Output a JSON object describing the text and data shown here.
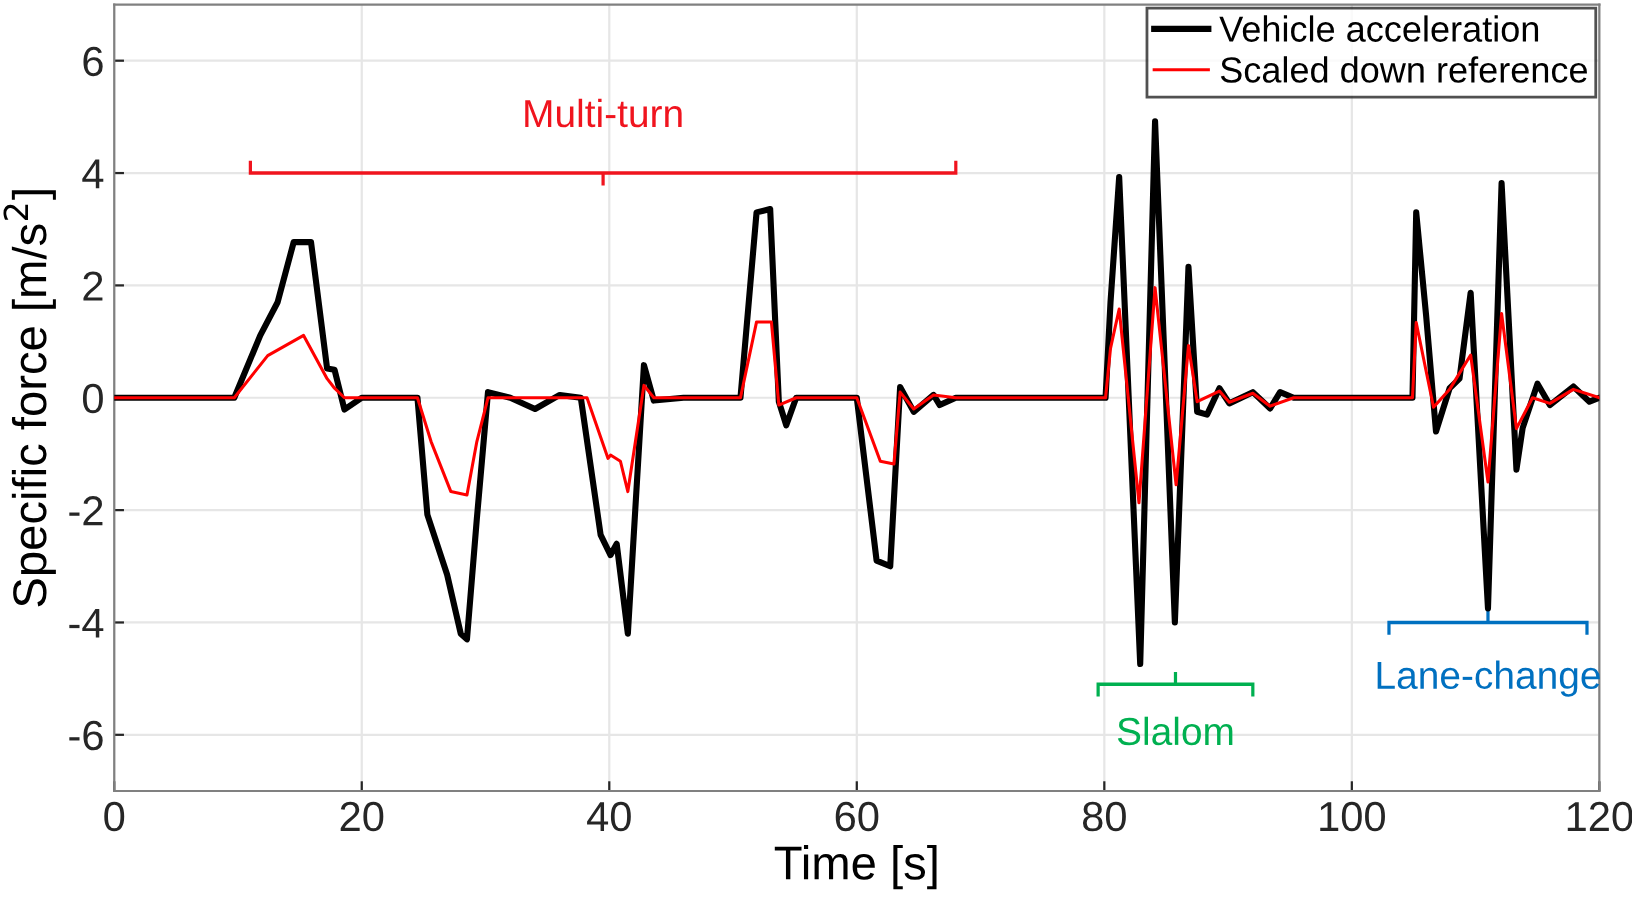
{
  "chart_data": {
    "type": "line",
    "xlabel": "Time [s]",
    "ylabel": "Specific force [m/s$^{2}$]",
    "xlim": [
      0,
      120
    ],
    "ylim": [
      -7,
      7
    ],
    "xticks": [
      0,
      20,
      40,
      60,
      80,
      100,
      120
    ],
    "yticks": [
      -6,
      -4,
      -2,
      0,
      2,
      4,
      6
    ],
    "grid": true,
    "legend": "top right",
    "line_style": "solid",
    "annotations": [
      "Multi-turn",
      "Slalom",
      "Lane-change"
    ],
    "series": [
      {
        "name": "Vehicle acceleration",
        "color": "#000000",
        "x": [
          0,
          9.7,
          11.8,
          13.2,
          14.5,
          15.9,
          17.2,
          17.8,
          18.6,
          20,
          24.5,
          25.3,
          26.9,
          28.0,
          28.5,
          29.3,
          30.2,
          32,
          34,
          36,
          37.7,
          39.3,
          40.1,
          40.6,
          41.5,
          42.8,
          43.6,
          46,
          50.6,
          51.9,
          53.0,
          53.7,
          54.3,
          55.1,
          60.0,
          61.6,
          62.7,
          63.5,
          64.6,
          66.2,
          66.7,
          68,
          80.1,
          80.5,
          81.2,
          82.9,
          84.1,
          85.7,
          86.8,
          87.5,
          88.3,
          89.3,
          90.1,
          92,
          93.4,
          94.2,
          95.3,
          104.9,
          105.2,
          106.0,
          106.8,
          107.9,
          108.7,
          109.6,
          111.0,
          112.1,
          113.3,
          113.8,
          115.0,
          116.0,
          117.9,
          119.2,
          120
        ],
        "values": [
          0,
          0,
          1.11,
          1.7,
          2.77,
          2.77,
          0.52,
          0.5,
          -0.21,
          0,
          0,
          -2.08,
          -3.15,
          -4.2,
          -4.3,
          -2.15,
          0.1,
          0,
          -0.2,
          0.05,
          0,
          -2.44,
          -2.8,
          -2.6,
          -4.2,
          0.58,
          -0.05,
          0,
          0,
          3.3,
          3.36,
          -0.07,
          -0.49,
          0,
          0,
          -2.9,
          -3.0,
          0.19,
          -0.25,
          0.05,
          -0.13,
          0,
          0,
          1.7,
          3.93,
          -4.74,
          4.92,
          -4.0,
          2.33,
          -0.25,
          -0.3,
          0.17,
          -0.1,
          0.1,
          -0.19,
          0.1,
          0,
          0,
          3.3,
          1.47,
          -0.6,
          0.17,
          0.34,
          1.87,
          -3.75,
          3.82,
          -1.28,
          -0.54,
          0.25,
          -0.13,
          0.2,
          -0.07,
          0
        ]
      },
      {
        "name": "Scaled down reference",
        "color": "#ff0000",
        "x": [
          0,
          9.7,
          12.4,
          15.3,
          17.2,
          17.8,
          18.6,
          24.5,
          25.6,
          27.2,
          28.5,
          29.3,
          30.2,
          38.2,
          39.9,
          40.1,
          40.9,
          41.5,
          42.8,
          43.6,
          50.6,
          51.9,
          53.1,
          53.7,
          55.1,
          60.0,
          61.9,
          63.0,
          63.5,
          64.6,
          66.2,
          68,
          80.1,
          80.5,
          81.2,
          82.8,
          84.1,
          85.8,
          86.8,
          87.5,
          89.3,
          90.1,
          92,
          93.4,
          95.3,
          104.9,
          105.2,
          106.6,
          107.9,
          109.6,
          111.0,
          112.1,
          113.3,
          114.6,
          116.0,
          117.9,
          120
        ],
        "values": [
          0,
          0,
          0.75,
          1.11,
          0.34,
          0.17,
          0,
          0,
          -0.78,
          -1.67,
          -1.73,
          -0.78,
          0,
          0,
          -1.08,
          -1.02,
          -1.13,
          -1.67,
          0.22,
          0,
          0,
          1.35,
          1.35,
          -0.13,
          0,
          0,
          -1.13,
          -1.18,
          0.1,
          -0.2,
          0.05,
          0,
          0,
          0.88,
          1.58,
          -1.87,
          1.96,
          -1.55,
          0.93,
          -0.07,
          0.12,
          -0.08,
          0.08,
          -0.15,
          0,
          0,
          1.34,
          -0.17,
          0.15,
          0.76,
          -1.5,
          1.5,
          -0.55,
          0,
          -0.1,
          0.15,
          0
        ]
      }
    ]
  }
}
